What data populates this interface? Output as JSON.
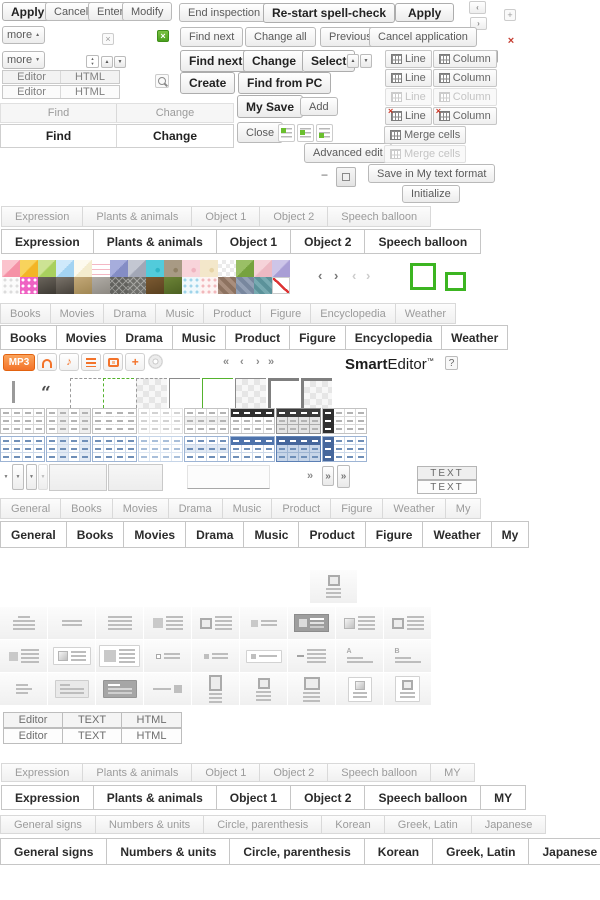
{
  "colors": {
    "accent_green": "#3cb521",
    "accent_orange": "#f3732a",
    "close_red": "#c43b2f",
    "table_blue": "#5b7fb4"
  },
  "icons": {
    "close": "×",
    "plus": "+",
    "minus": "−",
    "up": "▲",
    "down": "▼",
    "chev_left": "‹",
    "chev_right": "›",
    "chev_dleft": "«",
    "chev_dright": "»",
    "quote": "“"
  },
  "buttons": {
    "apply": "Apply",
    "cancel": "Cancel",
    "enter": "Enter",
    "modify": "Modify",
    "end_inspection": "End inspection",
    "restart_spellcheck": "Re-start spell-check",
    "apply2": "Apply",
    "more": "more",
    "find_next": "Find next",
    "change_all": "Change all",
    "previous": "Previous",
    "cancel_application": "Cancel application",
    "find_next_bold": "Find next",
    "change_bold": "Change",
    "select": "Select",
    "create": "Create",
    "find_from_pc": "Find from PC",
    "my_save": "My Save",
    "add": "Add",
    "close": "Close",
    "advanced_edit": "Advanced edit",
    "save_my_text": "Save in My text format",
    "initialize": "Initialize",
    "line": "Line",
    "column": "Column",
    "merge_cells": "Merge cells",
    "text_upper": "TEXT",
    "mp3": "MP3"
  },
  "logo": {
    "brand_bold": "Smart",
    "brand_rest": "Editor",
    "tm": "™",
    "help": "?"
  },
  "editor_tabs": [
    "Editor",
    "HTML"
  ],
  "find_change_tabs": [
    "Find",
    "Change"
  ],
  "editor_text_html_tabs": [
    "Editor",
    "TEXT",
    "HTML"
  ],
  "sticker_tabs": [
    "Expression",
    "Plants & animals",
    "Object 1",
    "Object 2",
    "Speech balloon"
  ],
  "sticker_tabs_my": [
    "Expression",
    "Plants & animals",
    "Object 1",
    "Object 2",
    "Speech balloon",
    "MY"
  ],
  "media_tabs": [
    "Books",
    "Movies",
    "Drama",
    "Music",
    "Product",
    "Figure",
    "Encyclopedia",
    "Weather"
  ],
  "category_tabs": [
    "General",
    "Books",
    "Movies",
    "Drama",
    "Music",
    "Product",
    "Figure",
    "Weather",
    "My"
  ],
  "symbol_tabs": [
    "General signs",
    "Numbers & units",
    "Circle, parenthesis",
    "Korean",
    "Greek, Latin",
    "Japanese"
  ],
  "layout_letters": [
    "A",
    "B"
  ],
  "palette": {
    "row1": [
      {
        "t": "quad",
        "c1": "#fbc3cd",
        "c2": "#f591a6"
      },
      {
        "t": "quad",
        "c1": "#f8d35c",
        "c2": "#f3b525"
      },
      {
        "t": "quad",
        "c1": "#cde394",
        "c2": "#a8d05e"
      },
      {
        "t": "quad",
        "c1": "#cfe9fb",
        "c2": "#a3d3f2"
      },
      {
        "t": "quad",
        "c1": "#fdfaee",
        "c2": "#f4ecce"
      },
      {
        "t": "stripes",
        "c1": "#ffffff",
        "c2": "#f4b8c4"
      },
      {
        "t": "quad",
        "c1": "#a6addc",
        "c2": "#848dc5"
      },
      {
        "t": "quad",
        "c1": "#c3c7d2",
        "c2": "#a2a7b6"
      },
      {
        "t": "dot",
        "c1": "#52cbdb",
        "c2": "#2fb5c7"
      },
      {
        "t": "dot",
        "c1": "#a89a84",
        "c2": "#8f8064"
      },
      {
        "t": "dot",
        "c1": "#f8d4da",
        "c2": "#f0b4c0"
      },
      {
        "t": "dot",
        "c1": "#f3e7ca",
        "c2": "#e6d3a6"
      },
      {
        "t": "checker",
        "c1": "#ffffff",
        "c2": "#ebebeb"
      },
      {
        "t": "quad",
        "c1": "#9abf66",
        "c2": "#76a23e"
      },
      {
        "t": "quad",
        "c1": "#f6d3d9",
        "c2": "#edb9c3"
      },
      {
        "t": "quad",
        "c1": "#cdc5e8",
        "c2": "#a99ed5"
      }
    ],
    "row2": [
      {
        "t": "dots",
        "c1": "#fbfbfb",
        "c2": "#dcdcdc"
      },
      {
        "t": "dots",
        "c1": "#ef62c3",
        "c2": "#ffffff"
      },
      {
        "t": "photo",
        "c1": "#6b655c",
        "c2": "#3c3832"
      },
      {
        "t": "photo",
        "c1": "#7a736a",
        "c2": "#46413a"
      },
      {
        "t": "photo",
        "c1": "#c3a878",
        "c2": "#a08753"
      },
      {
        "t": "photo",
        "c1": "#b0aca6",
        "c2": "#8d8982"
      },
      {
        "t": "xpat",
        "c1": "#62625e",
        "c2": "#9a9a96"
      },
      {
        "t": "xpat",
        "c1": "#6e6e6a",
        "c2": "#a4a4a0"
      },
      {
        "t": "photo",
        "c1": "#7c5a32",
        "c2": "#59401f"
      },
      {
        "t": "photo",
        "c1": "#6d8437",
        "c2": "#4c6122"
      },
      {
        "t": "dots",
        "c1": "#eff8fc",
        "c2": "#9fd4ea"
      },
      {
        "t": "dots",
        "c1": "#fdf4f3",
        "c2": "#f2b8bc"
      },
      {
        "t": "diag",
        "c1": "#a98e7d",
        "c2": "#8d7260"
      },
      {
        "t": "diag",
        "c1": "#93a0b5",
        "c2": "#78879e"
      },
      {
        "t": "diag",
        "c1": "#77aab1",
        "c2": "#5b929a"
      },
      {
        "t": "slash",
        "c1": "#ffffff",
        "c2": "#dd3333"
      }
    ]
  },
  "border_styles": [
    {
      "bg": "white",
      "line": "dashed-gray"
    },
    {
      "bg": "white",
      "line": "dashed-green"
    },
    {
      "bg": "checker",
      "line": "dashed-gray"
    },
    {
      "bg": "white",
      "line": "thin-gray"
    },
    {
      "bg": "white",
      "line": "thin-green"
    },
    {
      "bg": "checker",
      "line": "thin-gray"
    },
    {
      "bg": "white",
      "line": "thick-gray"
    },
    {
      "bg": "checker",
      "line": "thick-gray"
    }
  ],
  "table_style_variants": [
    "plain",
    "tint-col",
    "hlines",
    "light",
    "tint-row",
    "head-row",
    "dark",
    "head-col"
  ],
  "layout_icons": [
    [
      "lines-center",
      "lines-two",
      "lines-full",
      "sq-lines",
      "frame-lines",
      "sqsm-lines",
      "dark-lines",
      "grad-lines",
      "frame-lines"
    ],
    [
      "sq-lines-sm",
      "card-sq-lines",
      "card-sq-lines-lg",
      "dot-line",
      "dot-line-tint",
      "card-dot-line",
      "dash-lines",
      "a-lines",
      "b-lines"
    ],
    [
      "lines-short",
      "card-lines",
      "card-dark",
      "line-sq",
      "tall-lines",
      "top-lines",
      "top-lines-lg",
      "card-top",
      "card-top-lg"
    ]
  ],
  "single_layout_icon": "top-lines"
}
